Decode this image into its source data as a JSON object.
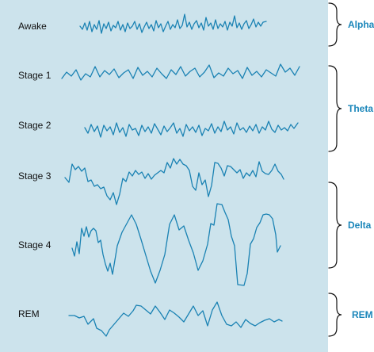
{
  "stages": [
    {
      "id": "awake",
      "label": "Awake"
    },
    {
      "id": "stage1",
      "label": "Stage 1"
    },
    {
      "id": "stage2",
      "label": "Stage 2"
    },
    {
      "id": "stage3",
      "label": "Stage 3"
    },
    {
      "id": "stage4",
      "label": "Stage 4"
    },
    {
      "id": "rem",
      "label": "REM"
    }
  ],
  "bands": [
    {
      "id": "alpha",
      "label": "Alpha"
    },
    {
      "id": "theta",
      "label": "Theta"
    },
    {
      "id": "delta",
      "label": "Delta"
    },
    {
      "id": "rem",
      "label": "REM"
    }
  ],
  "colors": {
    "panel_background": "#cce3ec",
    "wave": "#1a82b3",
    "band_label": "#1a86ba",
    "stage_label": "#111111",
    "brace": "#111111"
  }
}
